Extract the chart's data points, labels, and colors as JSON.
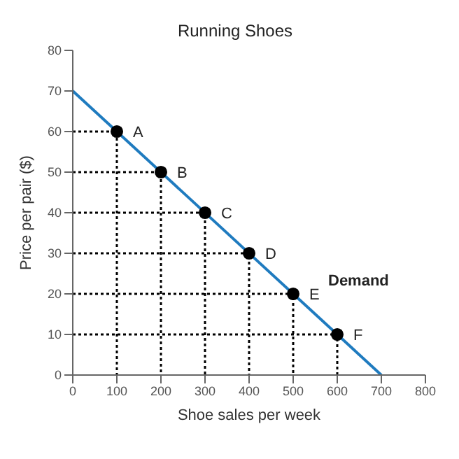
{
  "chart_data": {
    "type": "line",
    "title": "Running Shoes",
    "xlabel": "Shoe sales per week",
    "ylabel": "Price per pair ($)",
    "xlim": [
      0,
      800
    ],
    "xticks": [
      0,
      100,
      200,
      300,
      400,
      500,
      600,
      700,
      800
    ],
    "ylim": [
      0,
      80
    ],
    "yticks": [
      0,
      10,
      20,
      30,
      40,
      50,
      60,
      70,
      80
    ],
    "grid": false,
    "legend": false,
    "series": [
      {
        "name": "Demand",
        "color": "#1f7bbf",
        "x": [
          0,
          700
        ],
        "values": [
          70,
          0
        ],
        "marker": "none",
        "line_style": "solid"
      },
      {
        "type": "line",
        "color": "#000000",
        "x": [
          0,
          100,
          100
        ],
        "values": [
          60,
          60,
          0
        ],
        "marker": "none",
        "line_style": "dotted"
      },
      {
        "type": "line",
        "color": "#000000",
        "x": [
          0,
          200,
          200
        ],
        "values": [
          50,
          50,
          0
        ],
        "marker": "none",
        "line_style": "dotted"
      },
      {
        "type": "line",
        "color": "#000000",
        "x": [
          0,
          300,
          300
        ],
        "values": [
          40,
          40,
          0
        ],
        "marker": "none",
        "line_style": "dotted"
      },
      {
        "type": "line",
        "color": "#000000",
        "x": [
          0,
          400,
          400
        ],
        "values": [
          30,
          30,
          0
        ],
        "marker": "none",
        "line_style": "dotted"
      },
      {
        "type": "line",
        "color": "#000000",
        "x": [
          0,
          500,
          500
        ],
        "values": [
          20,
          20,
          0
        ],
        "marker": "none",
        "line_style": "dotted"
      },
      {
        "type": "line",
        "color": "#000000",
        "x": [
          0,
          600,
          600
        ],
        "values": [
          10,
          10,
          0
        ],
        "marker": "none",
        "line_style": "dotted"
      },
      {
        "type": "scatter",
        "color": "#000000",
        "x": [
          100,
          200,
          300,
          400,
          500,
          600
        ],
        "values": [
          60,
          50,
          40,
          30,
          20,
          10
        ],
        "marker": "circle",
        "value_labels": [
          "A",
          "B",
          "C",
          "D",
          "E",
          "F"
        ]
      }
    ]
  }
}
